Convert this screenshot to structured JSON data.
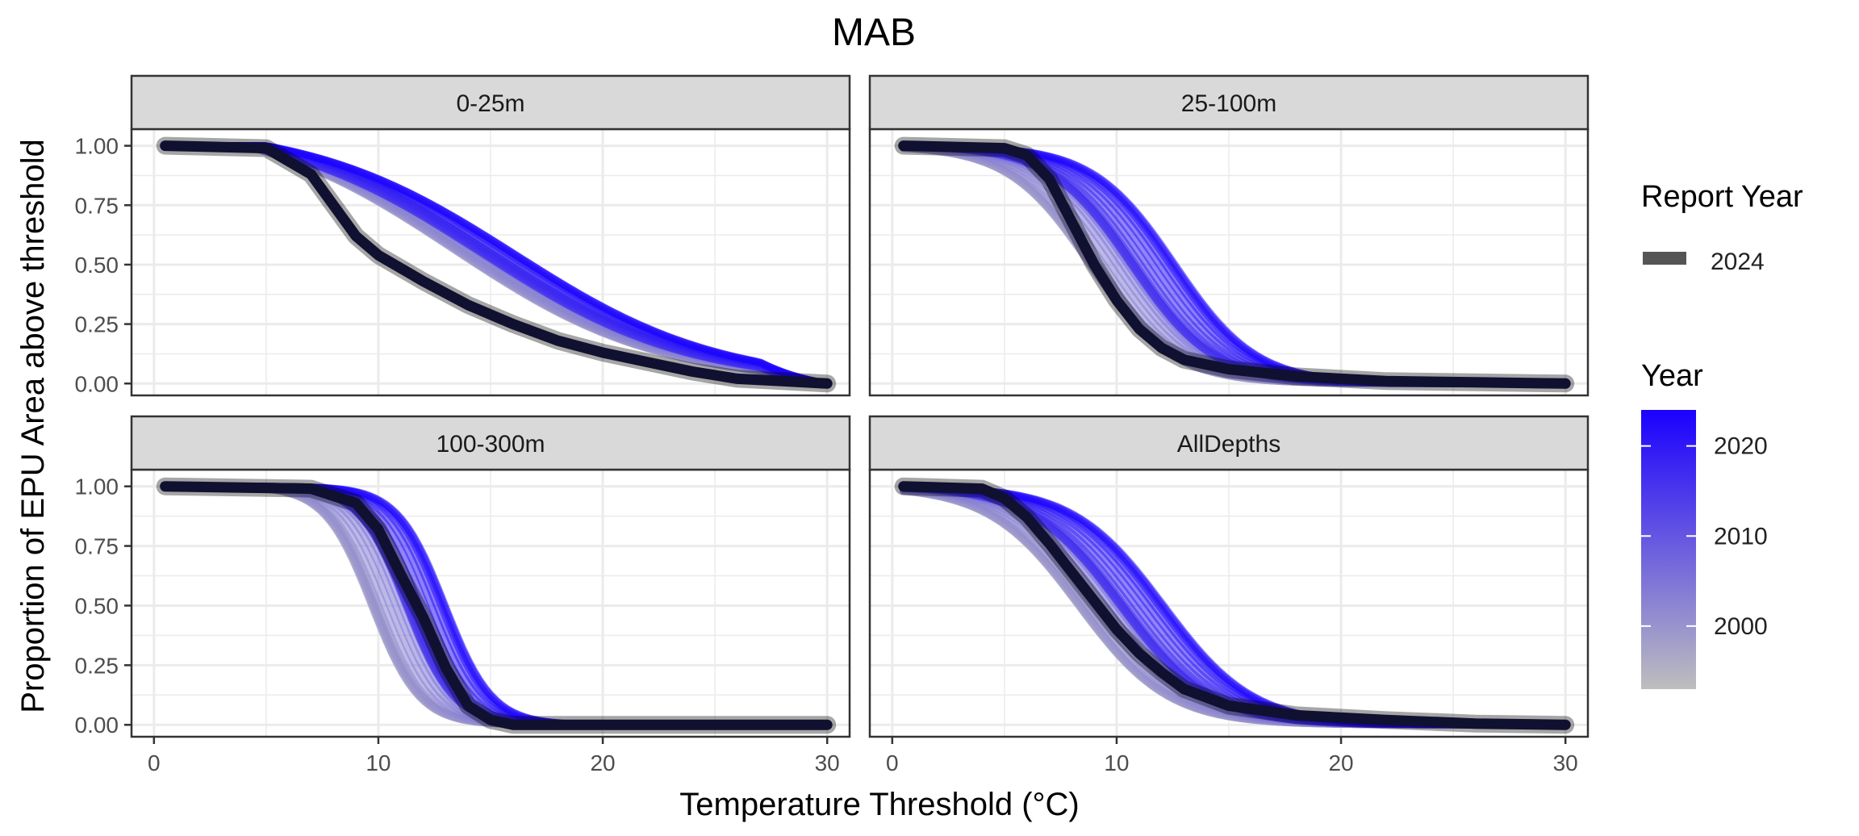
{
  "chart_data": {
    "type": "line",
    "title": "MAB",
    "xlabel": "Temperature Threshold (°C)",
    "ylabel": "Proportion of EPU Area above threshold",
    "xlim": [
      -1,
      31
    ],
    "ylim": [
      -0.05,
      1.07
    ],
    "x_ticks": [
      0,
      10,
      20,
      30
    ],
    "y_ticks": [
      0.0,
      0.25,
      0.5,
      0.75,
      1.0
    ],
    "x_tick_labels": [
      "0",
      "10",
      "20",
      "30"
    ],
    "y_tick_labels": [
      "0.00",
      "0.25",
      "0.50",
      "0.75",
      "1.00"
    ],
    "grid": true,
    "x_range_data": [
      0.5,
      30
    ],
    "year_range": [
      1993,
      2024
    ],
    "report_year": 2024,
    "panels": [
      {
        "label": "0-25m",
        "sigmoid": {
          "mode": "linearish",
          "ref_mid": 14.5,
          "slope": 0.055,
          "ref_top": 4.5
        },
        "final_points": [
          [
            0.5,
            1.0
          ],
          [
            5,
            0.99
          ],
          [
            7,
            0.88
          ],
          [
            8,
            0.75
          ],
          [
            9,
            0.62
          ],
          [
            10,
            0.54
          ],
          [
            12,
            0.43
          ],
          [
            14,
            0.33
          ],
          [
            16,
            0.25
          ],
          [
            18,
            0.18
          ],
          [
            20,
            0.13
          ],
          [
            22,
            0.09
          ],
          [
            24,
            0.05
          ],
          [
            26,
            0.02
          ],
          [
            28,
            0.01
          ],
          [
            30,
            0.0
          ]
        ]
      },
      {
        "label": "25-100m",
        "sigmoid": {
          "mode": "logistic",
          "ref_mid": 11.5,
          "slope": 0.55,
          "spread": 3.0
        },
        "final_points": [
          [
            0.5,
            1.0
          ],
          [
            5,
            0.99
          ],
          [
            6,
            0.96
          ],
          [
            7,
            0.86
          ],
          [
            8,
            0.68
          ],
          [
            9,
            0.5
          ],
          [
            10,
            0.35
          ],
          [
            11,
            0.23
          ],
          [
            12,
            0.15
          ],
          [
            13,
            0.1
          ],
          [
            15,
            0.06
          ],
          [
            18,
            0.03
          ],
          [
            22,
            0.01
          ],
          [
            26,
            0.005
          ],
          [
            30,
            0.0
          ]
        ]
      },
      {
        "label": "100-300m",
        "sigmoid": {
          "mode": "logistic",
          "ref_mid": 12.0,
          "slope": 0.95,
          "spread": 2.5
        },
        "final_points": [
          [
            0.5,
            1.0
          ],
          [
            7,
            0.99
          ],
          [
            9,
            0.93
          ],
          [
            10,
            0.82
          ],
          [
            11,
            0.63
          ],
          [
            12,
            0.45
          ],
          [
            13,
            0.24
          ],
          [
            14,
            0.08
          ],
          [
            15,
            0.02
          ],
          [
            16,
            0.0
          ],
          [
            30,
            0.0
          ]
        ]
      },
      {
        "label": "AllDepths",
        "sigmoid": {
          "mode": "logistic",
          "ref_mid": 11.0,
          "slope": 0.5,
          "spread": 3.0
        },
        "final_points": [
          [
            0.5,
            1.0
          ],
          [
            4,
            0.99
          ],
          [
            5,
            0.95
          ],
          [
            6,
            0.87
          ],
          [
            7,
            0.76
          ],
          [
            8,
            0.64
          ],
          [
            9,
            0.52
          ],
          [
            10,
            0.4
          ],
          [
            11,
            0.3
          ],
          [
            12,
            0.22
          ],
          [
            13,
            0.15
          ],
          [
            15,
            0.08
          ],
          [
            18,
            0.04
          ],
          [
            22,
            0.02
          ],
          [
            26,
            0.005
          ],
          [
            30,
            0.0
          ]
        ]
      }
    ],
    "legend": {
      "report_year_title": "Report Year",
      "report_year_label": "2024",
      "year_title": "Year",
      "year_ticks": [
        "2020",
        "2010",
        "2000"
      ],
      "year_tick_values": [
        2020,
        2010,
        2000
      ]
    },
    "colors": {
      "year_low": "#bebebe",
      "year_high": "#1a00ff",
      "final_line": "#101030",
      "strip_fill": "#d9d9d9",
      "grid": "#ebebeb",
      "panel_border": "#333333"
    }
  }
}
